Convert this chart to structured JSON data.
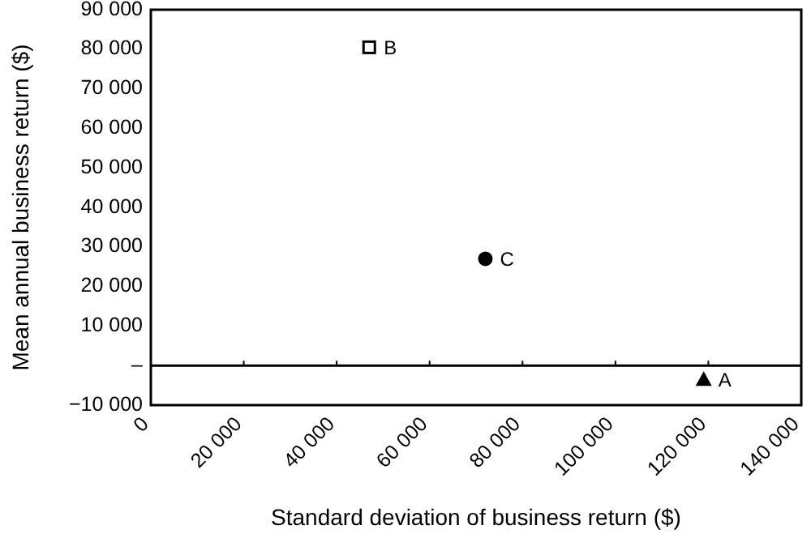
{
  "chart_data": {
    "type": "scatter",
    "xlabel": "Standard deviation of business return ($)",
    "ylabel": "Mean annual business return ($)",
    "xlim": [
      0,
      140000
    ],
    "xticks": [
      {
        "value": 0,
        "label": "0"
      },
      {
        "value": 20000,
        "label": "20 000"
      },
      {
        "value": 40000,
        "label": "40 000"
      },
      {
        "value": 60000,
        "label": "60 000"
      },
      {
        "value": 80000,
        "label": "80 000"
      },
      {
        "value": 100000,
        "label": "100 000"
      },
      {
        "value": 120000,
        "label": "120 000"
      },
      {
        "value": 140000,
        "label": "140 000"
      }
    ],
    "ylim": [
      -10000,
      90000
    ],
    "yticks": [
      {
        "value": -10000,
        "label": "−10 000"
      },
      {
        "value": 0,
        "label": "–"
      },
      {
        "value": 10000,
        "label": "10 000"
      },
      {
        "value": 20000,
        "label": "20 000"
      },
      {
        "value": 30000,
        "label": "30 000"
      },
      {
        "value": 40000,
        "label": "40 000"
      },
      {
        "value": 50000,
        "label": "50 000"
      },
      {
        "value": 60000,
        "label": "60 000"
      },
      {
        "value": 70000,
        "label": "70 000"
      },
      {
        "value": 80000,
        "label": "80 000"
      },
      {
        "value": 90000,
        "label": "90 000"
      }
    ],
    "ref_lines": [
      {
        "axis": "y",
        "value": 0,
        "color": "#000000"
      }
    ],
    "series": [
      {
        "name": "A",
        "color": "#000000",
        "marker": "triangle",
        "x": [
          119000
        ],
        "values": [
          -3500
        ]
      },
      {
        "name": "B",
        "color": "#000000",
        "marker": "square",
        "x": [
          47000
        ],
        "values": [
          80500
        ]
      },
      {
        "name": "C",
        "color": "#000000",
        "marker": "circle",
        "x": [
          72000
        ],
        "values": [
          27000
        ]
      }
    ]
  }
}
